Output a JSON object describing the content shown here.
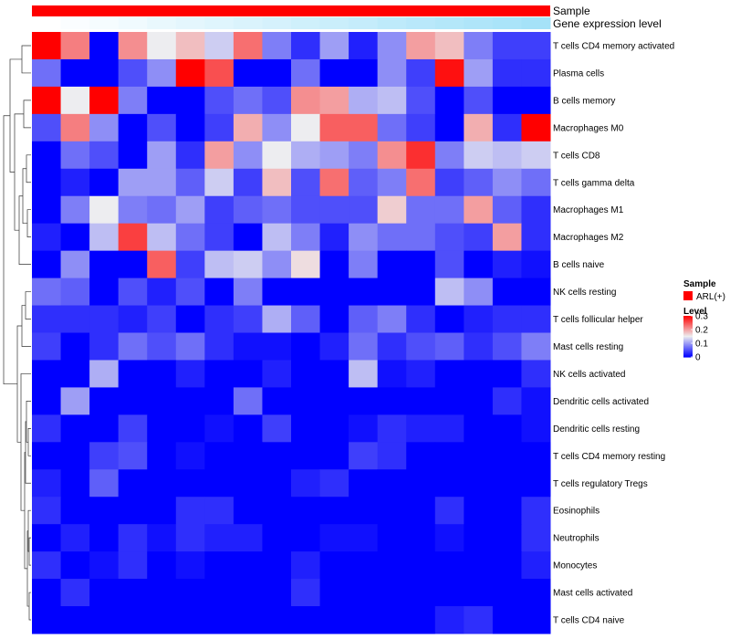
{
  "chart_data": {
    "type": "heatmap",
    "rows": [
      "T cells CD4 memory activated",
      "Plasma cells",
      "B cells memory",
      "Macrophages M0",
      "T cells CD8",
      "T cells gamma delta",
      "Macrophages M1",
      "Macrophages M2",
      "B cells naive",
      "NK cells resting",
      "T cells follicular helper",
      "Mast cells resting",
      "NK cells activated",
      "Dendritic cells activated",
      "Dendritic cells resting",
      "T cells CD4 memory resting",
      "T cells regulatory  Tregs",
      "Eosinophils",
      "Neutrophils",
      "Monocytes",
      "Mast cells activated",
      "T cells CD4 naive"
    ],
    "column_count": 18,
    "values": [
      [
        0.3,
        0.22,
        0.0,
        0.21,
        0.15,
        0.18,
        0.13,
        0.23,
        0.08,
        0.03,
        0.1,
        0.02,
        0.09,
        0.2,
        0.18,
        0.08,
        0.04,
        0.04
      ],
      [
        0.07,
        0.0,
        0.0,
        0.05,
        0.09,
        0.3,
        0.25,
        0.0,
        0.0,
        0.07,
        0.0,
        0.0,
        0.09,
        0.04,
        0.29,
        0.1,
        0.03,
        0.03
      ],
      [
        0.3,
        0.15,
        0.3,
        0.08,
        0.0,
        0.0,
        0.05,
        0.07,
        0.05,
        0.21,
        0.2,
        0.11,
        0.12,
        0.05,
        0.0,
        0.05,
        0.0,
        0.0
      ],
      [
        0.05,
        0.22,
        0.09,
        0.0,
        0.05,
        0.0,
        0.04,
        0.19,
        0.09,
        0.15,
        0.24,
        0.24,
        0.07,
        0.04,
        0.0,
        0.19,
        0.03,
        0.3
      ],
      [
        0.0,
        0.07,
        0.05,
        0.0,
        0.1,
        0.03,
        0.2,
        0.09,
        0.15,
        0.11,
        0.1,
        0.08,
        0.21,
        0.27,
        0.08,
        0.13,
        0.12,
        0.13
      ],
      [
        0.0,
        0.02,
        0.0,
        0.1,
        0.1,
        0.06,
        0.13,
        0.04,
        0.18,
        0.05,
        0.23,
        0.06,
        0.08,
        0.23,
        0.04,
        0.06,
        0.09,
        0.07
      ],
      [
        0.0,
        0.08,
        0.15,
        0.08,
        0.07,
        0.1,
        0.04,
        0.06,
        0.07,
        0.05,
        0.05,
        0.05,
        0.17,
        0.07,
        0.07,
        0.2,
        0.06,
        0.03
      ],
      [
        0.02,
        0.0,
        0.12,
        0.26,
        0.12,
        0.07,
        0.04,
        0.0,
        0.12,
        0.08,
        0.02,
        0.09,
        0.07,
        0.07,
        0.05,
        0.04,
        0.2,
        0.03
      ],
      [
        0.0,
        0.09,
        0.0,
        0.0,
        0.24,
        0.04,
        0.12,
        0.13,
        0.09,
        0.16,
        0.0,
        0.08,
        0.0,
        0.0,
        0.05,
        0.0,
        0.02,
        0.01
      ],
      [
        0.07,
        0.06,
        0.0,
        0.05,
        0.02,
        0.05,
        0.0,
        0.08,
        0.0,
        0.0,
        0.0,
        0.0,
        0.0,
        0.0,
        0.12,
        0.09,
        0.0,
        0.0
      ],
      [
        0.03,
        0.03,
        0.03,
        0.02,
        0.04,
        0.0,
        0.03,
        0.04,
        0.11,
        0.06,
        0.0,
        0.06,
        0.08,
        0.03,
        0.0,
        0.02,
        0.03,
        0.03
      ],
      [
        0.04,
        0.0,
        0.03,
        0.07,
        0.05,
        0.07,
        0.03,
        0.01,
        0.01,
        0.0,
        0.02,
        0.07,
        0.03,
        0.05,
        0.06,
        0.03,
        0.05,
        0.08
      ],
      [
        0.0,
        0.0,
        0.11,
        0.0,
        0.0,
        0.02,
        0.0,
        0.0,
        0.02,
        0.0,
        0.0,
        0.12,
        0.01,
        0.02,
        0.0,
        0.0,
        0.0,
        0.03
      ],
      [
        0.0,
        0.1,
        0.0,
        0.0,
        0.0,
        0.0,
        0.0,
        0.07,
        0.0,
        0.0,
        0.0,
        0.0,
        0.0,
        0.0,
        0.0,
        0.0,
        0.03,
        0.01
      ],
      [
        0.03,
        0.0,
        0.0,
        0.04,
        0.0,
        0.0,
        0.01,
        0.0,
        0.04,
        0.0,
        0.0,
        0.01,
        0.03,
        0.02,
        0.02,
        0.0,
        0.0,
        0.01
      ],
      [
        0.0,
        0.0,
        0.04,
        0.05,
        0.0,
        0.01,
        0.0,
        0.0,
        0.0,
        0.0,
        0.0,
        0.04,
        0.03,
        0.0,
        0.0,
        0.0,
        0.0,
        0.0
      ],
      [
        0.02,
        0.0,
        0.06,
        0.0,
        0.0,
        0.0,
        0.0,
        0.0,
        0.0,
        0.02,
        0.03,
        0.0,
        0.0,
        0.0,
        0.0,
        0.0,
        0.0,
        0.0
      ],
      [
        0.03,
        0.0,
        0.0,
        0.0,
        0.0,
        0.03,
        0.03,
        0.0,
        0.0,
        0.0,
        0.0,
        0.0,
        0.0,
        0.0,
        0.03,
        0.0,
        0.0,
        0.03
      ],
      [
        0.0,
        0.02,
        0.0,
        0.03,
        0.01,
        0.03,
        0.02,
        0.02,
        0.0,
        0.0,
        0.01,
        0.01,
        0.0,
        0.0,
        0.01,
        0.0,
        0.0,
        0.03
      ],
      [
        0.03,
        0.0,
        0.01,
        0.03,
        0.0,
        0.01,
        0.0,
        0.0,
        0.0,
        0.02,
        0.0,
        0.0,
        0.0,
        0.0,
        0.0,
        0.0,
        0.0,
        0.02
      ],
      [
        0.0,
        0.03,
        0.0,
        0.0,
        0.0,
        0.0,
        0.0,
        0.0,
        0.0,
        0.03,
        0.0,
        0.0,
        0.0,
        0.0,
        0.0,
        0.0,
        0.0,
        0.0
      ],
      [
        0.0,
        0.0,
        0.0,
        0.0,
        0.0,
        0.0,
        0.0,
        0.0,
        0.0,
        0.0,
        0.0,
        0.0,
        0.0,
        0.0,
        0.02,
        0.03,
        0.0,
        0.0
      ]
    ],
    "color_scale": {
      "range": [
        0,
        0.3
      ],
      "low_color": "#0000ff",
      "mid_value": 0.15,
      "mid_color": "#ededf0",
      "high_color": "#ff0000"
    },
    "annotation_tracks": [
      {
        "label": "Sample",
        "color": "#ff0000"
      },
      {
        "label": "Gene expression level",
        "low_color": "#ffffff",
        "high_color": "#55c8f2",
        "values": [
          0.0,
          0.03,
          0.06,
          0.09,
          0.13,
          0.16,
          0.19,
          0.22,
          0.25,
          0.28,
          0.31,
          0.34,
          0.38,
          0.41,
          0.44,
          0.47,
          0.5,
          0.53
        ]
      }
    ],
    "legend": {
      "sample_title": "Sample",
      "sample_entry": "ARL(+)",
      "sample_color": "#ff0000",
      "level_title": "Level",
      "level_ticks": [
        {
          "value": 0.3,
          "label": "0.3"
        },
        {
          "value": 0.2,
          "label": "0.2"
        },
        {
          "value": 0.1,
          "label": "0.1"
        },
        {
          "value": 0,
          "label": "0"
        }
      ]
    },
    "dendrogram": "row-clustering"
  }
}
